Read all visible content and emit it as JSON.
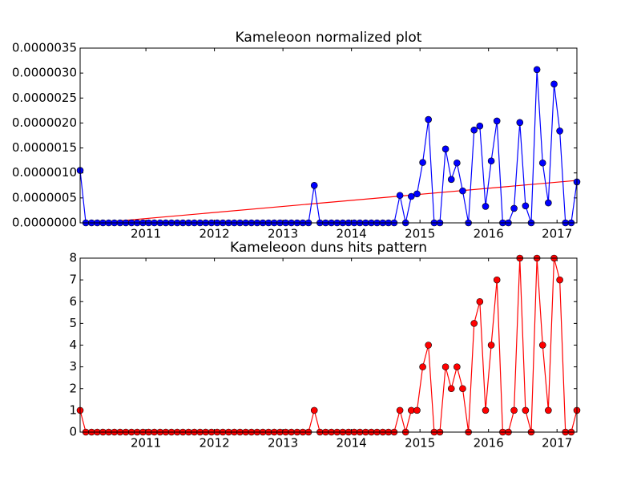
{
  "chart_data": [
    {
      "type": "line",
      "title": "Kameleoon normalized plot",
      "x": [
        2010.04,
        2010.123,
        2010.207,
        2010.29,
        2010.373,
        2010.457,
        2010.54,
        2010.623,
        2010.707,
        2010.79,
        2010.873,
        2010.957,
        2011.04,
        2011.123,
        2011.207,
        2011.29,
        2011.373,
        2011.457,
        2011.54,
        2011.623,
        2011.707,
        2011.79,
        2011.873,
        2011.957,
        2012.04,
        2012.123,
        2012.207,
        2012.29,
        2012.373,
        2012.457,
        2012.54,
        2012.623,
        2012.707,
        2012.79,
        2012.873,
        2012.957,
        2013.04,
        2013.123,
        2013.207,
        2013.29,
        2013.373,
        2013.457,
        2013.54,
        2013.623,
        2013.707,
        2013.79,
        2013.873,
        2013.957,
        2014.04,
        2014.123,
        2014.207,
        2014.29,
        2014.373,
        2014.457,
        2014.54,
        2014.623,
        2014.707,
        2014.79,
        2014.873,
        2014.957,
        2015.04,
        2015.123,
        2015.207,
        2015.29,
        2015.373,
        2015.457,
        2015.54,
        2015.623,
        2015.707,
        2015.79,
        2015.873,
        2015.957,
        2016.04,
        2016.123,
        2016.207,
        2016.29,
        2016.373,
        2016.457,
        2016.54,
        2016.623,
        2016.707,
        2016.79,
        2016.873,
        2016.957,
        2017.04,
        2017.123,
        2017.207,
        2017.29
      ],
      "series": [
        {
          "color": "#0000ff",
          "values": [
            1.05e-06,
            0,
            0,
            0,
            0,
            0,
            0,
            0,
            0,
            0,
            0,
            0,
            0,
            0,
            0,
            0,
            0,
            0,
            0,
            0,
            0,
            0,
            0,
            0,
            0,
            0,
            0,
            0,
            0,
            0,
            0,
            0,
            0,
            0,
            0,
            0,
            0,
            0,
            0,
            0,
            0,
            7.5e-07,
            0,
            0,
            0,
            0,
            0,
            0,
            0,
            0,
            0,
            0,
            0,
            0,
            0,
            0,
            5.5e-07,
            0,
            5.3e-07,
            5.8e-07,
            1.21e-06,
            2.07e-06,
            0,
            0,
            1.48e-06,
            8.7e-07,
            1.2e-06,
            6.4e-07,
            0,
            1.86e-06,
            1.94e-06,
            3.3e-07,
            1.24e-06,
            2.04e-06,
            0,
            0,
            2.9e-07,
            2.01e-06,
            3.4e-07,
            0,
            3.07e-06,
            1.2e-06,
            4e-07,
            2.78e-06,
            1.84e-06,
            0,
            0,
            8.2e-07
          ]
        }
      ],
      "trend": {
        "color": "#ff0000",
        "x": [
          2010.04,
          2017.29
        ],
        "values": [
          -3e-08,
          8.5e-07
        ]
      },
      "xlim": [
        2010.04,
        2017.29
      ],
      "xticks": [
        2011,
        2012,
        2013,
        2014,
        2015,
        2016,
        2017
      ],
      "ylim": [
        0,
        3.5e-06
      ],
      "yticks": [
        {
          "value": 0,
          "label": "0.0000000"
        },
        {
          "value": 5e-07,
          "label": "0.0000005"
        },
        {
          "value": 1e-06,
          "label": "0.0000010"
        },
        {
          "value": 1.5e-06,
          "label": "0.0000015"
        },
        {
          "value": 2e-06,
          "label": "0.0000020"
        },
        {
          "value": 2.5e-06,
          "label": "0.0000025"
        },
        {
          "value": 3e-06,
          "label": "0.0000030"
        },
        {
          "value": 3.5e-06,
          "label": "0.0000035"
        }
      ]
    },
    {
      "type": "line",
      "title": "Kameleoon duns hits pattern",
      "x": [
        2010.04,
        2010.123,
        2010.207,
        2010.29,
        2010.373,
        2010.457,
        2010.54,
        2010.623,
        2010.707,
        2010.79,
        2010.873,
        2010.957,
        2011.04,
        2011.123,
        2011.207,
        2011.29,
        2011.373,
        2011.457,
        2011.54,
        2011.623,
        2011.707,
        2011.79,
        2011.873,
        2011.957,
        2012.04,
        2012.123,
        2012.207,
        2012.29,
        2012.373,
        2012.457,
        2012.54,
        2012.623,
        2012.707,
        2012.79,
        2012.873,
        2012.957,
        2013.04,
        2013.123,
        2013.207,
        2013.29,
        2013.373,
        2013.457,
        2013.54,
        2013.623,
        2013.707,
        2013.79,
        2013.873,
        2013.957,
        2014.04,
        2014.123,
        2014.207,
        2014.29,
        2014.373,
        2014.457,
        2014.54,
        2014.623,
        2014.707,
        2014.79,
        2014.873,
        2014.957,
        2015.04,
        2015.123,
        2015.207,
        2015.29,
        2015.373,
        2015.457,
        2015.54,
        2015.623,
        2015.707,
        2015.79,
        2015.873,
        2015.957,
        2016.04,
        2016.123,
        2016.207,
        2016.29,
        2016.373,
        2016.457,
        2016.54,
        2016.623,
        2016.707,
        2016.79,
        2016.873,
        2016.957,
        2017.04,
        2017.123,
        2017.207,
        2017.29
      ],
      "series": [
        {
          "color": "#ff0000",
          "values": [
            1,
            0,
            0,
            0,
            0,
            0,
            0,
            0,
            0,
            0,
            0,
            0,
            0,
            0,
            0,
            0,
            0,
            0,
            0,
            0,
            0,
            0,
            0,
            0,
            0,
            0,
            0,
            0,
            0,
            0,
            0,
            0,
            0,
            0,
            0,
            0,
            0,
            0,
            0,
            0,
            0,
            1,
            0,
            0,
            0,
            0,
            0,
            0,
            0,
            0,
            0,
            0,
            0,
            0,
            0,
            0,
            1,
            0,
            1,
            1,
            3,
            4,
            0,
            0,
            3,
            2,
            3,
            2,
            0,
            5,
            6,
            1,
            4,
            7,
            0,
            0,
            1,
            8,
            1,
            0,
            8,
            4,
            1,
            8,
            7,
            0,
            0,
            1
          ]
        }
      ],
      "xlim": [
        2010.04,
        2017.29
      ],
      "xticks": [
        2011,
        2012,
        2013,
        2014,
        2015,
        2016,
        2017
      ],
      "ylim": [
        0,
        8
      ],
      "yticks": [
        0,
        1,
        2,
        3,
        4,
        5,
        6,
        7,
        8
      ]
    }
  ]
}
